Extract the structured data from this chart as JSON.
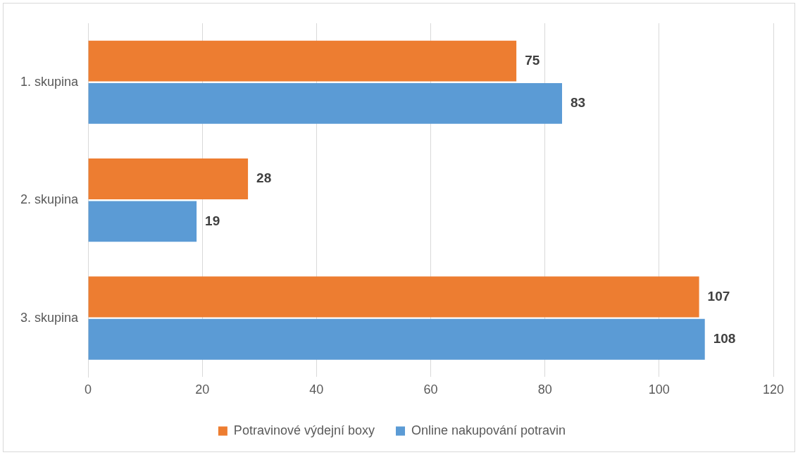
{
  "chart_data": {
    "type": "bar",
    "orientation": "horizontal",
    "categories": [
      "1. skupina",
      "2. skupina",
      "3. skupina"
    ],
    "series": [
      {
        "name": "Potravinové výdejní boxy",
        "color": "#ed7d31",
        "values": [
          75,
          28,
          107
        ]
      },
      {
        "name": "Online nakupování potravin",
        "color": "#5b9bd5",
        "values": [
          83,
          19,
          108
        ]
      }
    ],
    "xlim": [
      0,
      120
    ],
    "xticks": [
      0,
      20,
      40,
      60,
      80,
      100,
      120
    ],
    "grid": "x",
    "legend": "bottom",
    "data_labels": true
  }
}
